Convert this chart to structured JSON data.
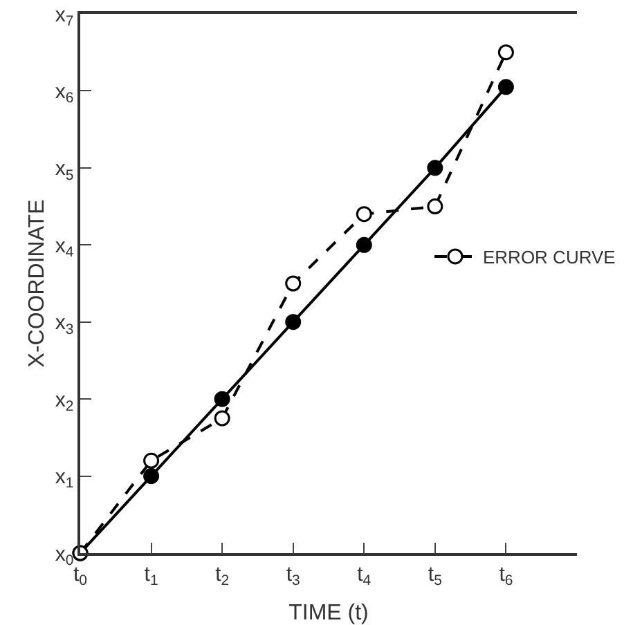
{
  "chart_data": {
    "type": "line",
    "xlabel": "TIME (t)",
    "ylabel": "X-COORDINATE",
    "x": [
      0,
      1,
      2,
      3,
      4,
      5,
      6
    ],
    "series": [
      {
        "color": "#000000",
        "values": [
          0,
          1,
          2,
          3,
          4,
          5,
          6.05
        ],
        "line_style": "solid",
        "marker": "circle"
      },
      {
        "name": "ERROR CURVE",
        "color": "#000000",
        "values": [
          0,
          1.2,
          1.75,
          3.5,
          4.4,
          4.5,
          6.5
        ],
        "line_style": "dashed",
        "marker": "circle"
      }
    ],
    "xlim": [
      0,
      7
    ],
    "ylim": [
      0,
      7
    ],
    "xticks": [
      {
        "value": 0,
        "label": "t$_{0}$"
      },
      {
        "value": 1,
        "label": "t$_{1}$"
      },
      {
        "value": 2,
        "label": "t$_{2}$"
      },
      {
        "value": 3,
        "label": "t$_{3}$"
      },
      {
        "value": 4,
        "label": "t$_{4}$"
      },
      {
        "value": 5,
        "label": "t$_{5}$"
      },
      {
        "value": 6,
        "label": "t$_{6}$"
      }
    ],
    "yticks": [
      {
        "value": 0,
        "label": "x$_{0}$"
      },
      {
        "value": 1,
        "label": "x$_{1}$"
      },
      {
        "value": 2,
        "label": "x$_{2}$"
      },
      {
        "value": 3,
        "label": "x$_{3}$"
      },
      {
        "value": 4,
        "label": "x$_{4}$"
      },
      {
        "value": 5,
        "label": "x$_{5}$"
      },
      {
        "value": 6,
        "label": "x$_{6}$"
      },
      {
        "value": 7,
        "label": "x$_{7}$"
      }
    ],
    "legend": "right"
  }
}
